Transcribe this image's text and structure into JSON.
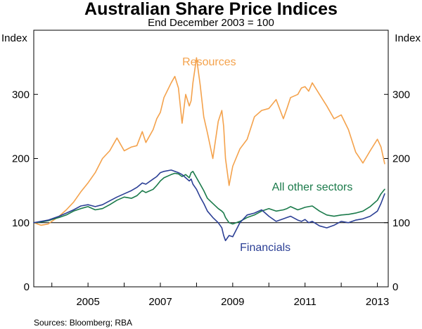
{
  "chart_data": {
    "type": "line",
    "title": "Australian Share Price Indices",
    "subtitle": "End December 2003 = 100",
    "ylabel_left": "Index",
    "ylabel_right": "Index",
    "ylim": [
      0,
      400
    ],
    "yticks": [
      0,
      100,
      200,
      300
    ],
    "xlim": [
      2003.5,
      2013.3
    ],
    "xticks": [
      {
        "value": 2005.0,
        "label": "2005"
      },
      {
        "value": 2007.0,
        "label": "2007"
      },
      {
        "value": 2009.0,
        "label": "2009"
      },
      {
        "value": 2011.0,
        "label": "2011"
      },
      {
        "value": 2013.0,
        "label": "2013"
      }
    ],
    "x_minor_ticks": [
      2004,
      2005,
      2006,
      2007,
      2008,
      2009,
      2010,
      2011,
      2012,
      2013
    ],
    "reference_line": 100,
    "grid": false,
    "source": "Sources: Bloomberg; RBA",
    "series": [
      {
        "name": "Resources",
        "color": "#f4a24c",
        "x": [
          2003.5,
          2003.7,
          2003.9,
          2004.0,
          2004.2,
          2004.4,
          2004.6,
          2004.8,
          2005.0,
          2005.2,
          2005.4,
          2005.6,
          2005.8,
          2006.0,
          2006.2,
          2006.35,
          2006.5,
          2006.6,
          2006.8,
          2006.9,
          2007.0,
          2007.1,
          2007.3,
          2007.4,
          2007.5,
          2007.6,
          2007.7,
          2007.8,
          2007.85,
          2007.9,
          2008.0,
          2008.1,
          2008.2,
          2008.3,
          2008.45,
          2008.6,
          2008.7,
          2008.75,
          2008.8,
          2008.9,
          2009.0,
          2009.2,
          2009.4,
          2009.6,
          2009.8,
          2010.0,
          2010.2,
          2010.4,
          2010.5,
          2010.6,
          2010.8,
          2010.9,
          2011.0,
          2011.1,
          2011.2,
          2011.4,
          2011.6,
          2011.8,
          2012.0,
          2012.2,
          2012.4,
          2012.6,
          2012.8,
          2013.0,
          2013.1,
          2013.2
        ],
        "y": [
          100,
          96,
          98,
          102,
          110,
          120,
          132,
          148,
          162,
          178,
          200,
          212,
          232,
          212,
          218,
          220,
          242,
          225,
          245,
          262,
          272,
          295,
          318,
          328,
          310,
          255,
          300,
          282,
          290,
          318,
          357,
          315,
          265,
          240,
          200,
          258,
          275,
          250,
          200,
          158,
          188,
          215,
          230,
          265,
          275,
          278,
          292,
          262,
          278,
          295,
          300,
          310,
          312,
          305,
          318,
          300,
          282,
          262,
          268,
          245,
          210,
          193,
          212,
          230,
          218,
          192
        ]
      },
      {
        "name": "All other sectors",
        "color": "#1a7a4a",
        "x": [
          2003.5,
          2003.7,
          2003.9,
          2004.0,
          2004.2,
          2004.4,
          2004.6,
          2004.8,
          2005.0,
          2005.2,
          2005.4,
          2005.6,
          2005.8,
          2006.0,
          2006.2,
          2006.35,
          2006.5,
          2006.6,
          2006.8,
          2006.9,
          2007.0,
          2007.1,
          2007.3,
          2007.4,
          2007.5,
          2007.6,
          2007.7,
          2007.8,
          2007.85,
          2007.9,
          2008.0,
          2008.1,
          2008.2,
          2008.3,
          2008.45,
          2008.6,
          2008.7,
          2008.75,
          2008.8,
          2008.9,
          2009.0,
          2009.2,
          2009.4,
          2009.6,
          2009.8,
          2010.0,
          2010.2,
          2010.4,
          2010.5,
          2010.6,
          2010.8,
          2010.9,
          2011.0,
          2011.1,
          2011.2,
          2011.4,
          2011.6,
          2011.8,
          2012.0,
          2012.2,
          2012.4,
          2012.6,
          2012.8,
          2013.0,
          2013.1,
          2013.2
        ],
        "y": [
          100,
          101,
          103,
          105,
          108,
          112,
          118,
          122,
          125,
          120,
          122,
          128,
          135,
          140,
          138,
          142,
          150,
          147,
          152,
          158,
          165,
          170,
          175,
          177,
          176,
          172,
          175,
          170,
          178,
          180,
          170,
          160,
          150,
          138,
          130,
          122,
          118,
          115,
          108,
          100,
          98,
          102,
          108,
          112,
          118,
          122,
          118,
          120,
          122,
          125,
          120,
          122,
          124,
          125,
          126,
          118,
          112,
          110,
          112,
          113,
          115,
          118,
          125,
          135,
          145,
          152
        ]
      },
      {
        "name": "Financials",
        "color": "#2b3f95",
        "x": [
          2003.5,
          2003.7,
          2003.9,
          2004.0,
          2004.2,
          2004.4,
          2004.6,
          2004.8,
          2005.0,
          2005.2,
          2005.4,
          2005.6,
          2005.8,
          2006.0,
          2006.2,
          2006.35,
          2006.5,
          2006.6,
          2006.8,
          2006.9,
          2007.0,
          2007.1,
          2007.3,
          2007.4,
          2007.5,
          2007.6,
          2007.7,
          2007.8,
          2007.85,
          2007.9,
          2008.0,
          2008.1,
          2008.2,
          2008.3,
          2008.45,
          2008.6,
          2008.7,
          2008.75,
          2008.8,
          2008.9,
          2009.0,
          2009.2,
          2009.4,
          2009.6,
          2009.8,
          2010.0,
          2010.2,
          2010.4,
          2010.5,
          2010.6,
          2010.8,
          2010.9,
          2011.0,
          2011.1,
          2011.2,
          2011.4,
          2011.6,
          2011.8,
          2012.0,
          2012.2,
          2012.4,
          2012.6,
          2012.8,
          2013.0,
          2013.1,
          2013.2
        ],
        "y": [
          100,
          102,
          104,
          106,
          110,
          115,
          120,
          126,
          128,
          125,
          128,
          134,
          140,
          145,
          150,
          155,
          162,
          160,
          168,
          172,
          178,
          180,
          182,
          180,
          178,
          175,
          170,
          165,
          168,
          160,
          152,
          140,
          130,
          118,
          108,
          100,
          92,
          80,
          72,
          80,
          78,
          100,
          112,
          115,
          120,
          110,
          102,
          106,
          108,
          110,
          104,
          102,
          105,
          100,
          102,
          95,
          92,
          96,
          102,
          100,
          104,
          106,
          110,
          118,
          130,
          145
        ]
      }
    ],
    "annotations": [
      {
        "text": "Resources",
        "series": "Resources",
        "x": 2008.35,
        "y": 345
      },
      {
        "text": "All other sectors",
        "series": "All other sectors",
        "x": 2011.2,
        "y": 150
      },
      {
        "text": "Financials",
        "series": "Financials",
        "x": 2009.9,
        "y": 56
      }
    ]
  }
}
